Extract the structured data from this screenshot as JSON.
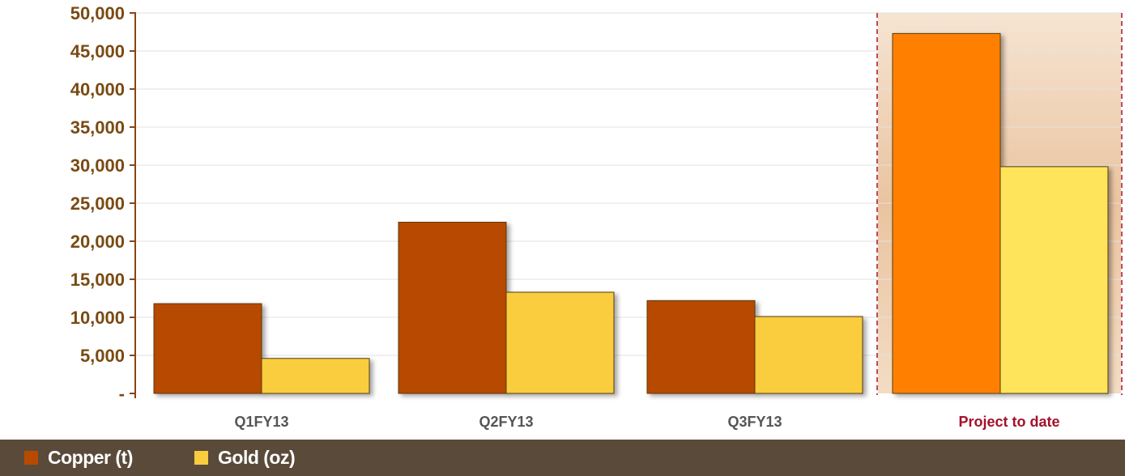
{
  "chart_data": {
    "type": "bar",
    "categories": [
      "Q1FY13",
      "Q2FY13",
      "Q3FY13",
      "Project to date"
    ],
    "series": [
      {
        "name": "Copper (t)",
        "values": [
          11800,
          22500,
          12200,
          47300
        ]
      },
      {
        "name": "Gold (oz)",
        "values": [
          4600,
          13300,
          10100,
          29800
        ]
      }
    ],
    "ylim": [
      0,
      50000
    ],
    "yticks": [
      {
        "value": 0,
        "label": "-"
      },
      {
        "value": 5000,
        "label": "5,000"
      },
      {
        "value": 10000,
        "label": "10,000"
      },
      {
        "value": 15000,
        "label": "15,000"
      },
      {
        "value": 20000,
        "label": "20,000"
      },
      {
        "value": 25000,
        "label": "25,000"
      },
      {
        "value": 30000,
        "label": "30,000"
      },
      {
        "value": 35000,
        "label": "35,000"
      },
      {
        "value": 40000,
        "label": "40,000"
      },
      {
        "value": 45000,
        "label": "45,000"
      },
      {
        "value": 50000,
        "label": "50,000"
      }
    ],
    "grid": true,
    "legend_position": "bottom",
    "highlighted_category": "Project to date"
  },
  "colors": {
    "copper": "#b84a00",
    "gold": "#f9cd3d",
    "copper_highlight": "#ff8000",
    "gold_highlight": "#fde45a",
    "axis": "#8b4513",
    "highlight_label": "#a3122a",
    "legend_bg": "#5a4a3a"
  },
  "legend": [
    {
      "label": "Copper (t)",
      "color": "#b84a00"
    },
    {
      "label": "Gold (oz)",
      "color": "#f9cd3d"
    }
  ]
}
